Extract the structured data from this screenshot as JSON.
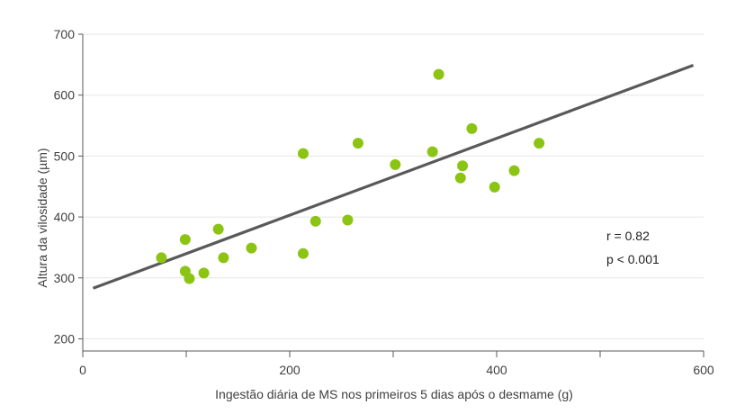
{
  "chart_data": {
    "type": "scatter",
    "title": "",
    "xlabel": "Ingestão diária de MS nos primeiros 5 dias após o desmame (g)",
    "ylabel": "Altura da vilosidade (µm)",
    "xlim": [
      0,
      600
    ],
    "ylim": [
      180,
      700
    ],
    "x_ticks": [
      0,
      100,
      200,
      300,
      400,
      500,
      600
    ],
    "x_tick_labels": [
      "0",
      "",
      "200",
      "",
      "400",
      "",
      "600"
    ],
    "y_ticks": [
      200,
      300,
      400,
      500,
      600,
      700
    ],
    "y_tick_labels": [
      "200",
      "300",
      "400",
      "500",
      "600",
      "700"
    ],
    "grid": "horizontal",
    "marker_color": "#8cc414",
    "line_color": "#595959",
    "points": [
      {
        "x": 76,
        "y": 333
      },
      {
        "x": 99,
        "y": 363
      },
      {
        "x": 99,
        "y": 311
      },
      {
        "x": 103,
        "y": 299
      },
      {
        "x": 117,
        "y": 308
      },
      {
        "x": 131,
        "y": 380
      },
      {
        "x": 136,
        "y": 333
      },
      {
        "x": 163,
        "y": 349
      },
      {
        "x": 213,
        "y": 340
      },
      {
        "x": 213,
        "y": 504
      },
      {
        "x": 225,
        "y": 393
      },
      {
        "x": 256,
        "y": 395
      },
      {
        "x": 266,
        "y": 521
      },
      {
        "x": 302,
        "y": 486
      },
      {
        "x": 338,
        "y": 507
      },
      {
        "x": 344,
        "y": 634
      },
      {
        "x": 365,
        "y": 464
      },
      {
        "x": 367,
        "y": 484
      },
      {
        "x": 376,
        "y": 545
      },
      {
        "x": 398,
        "y": 449
      },
      {
        "x": 417,
        "y": 476
      },
      {
        "x": 441,
        "y": 521
      }
    ],
    "trendline": {
      "x": [
        10,
        590
      ],
      "y": [
        283,
        649
      ]
    },
    "annotations": [
      "r = 0.82",
      "p < 0.001"
    ]
  }
}
